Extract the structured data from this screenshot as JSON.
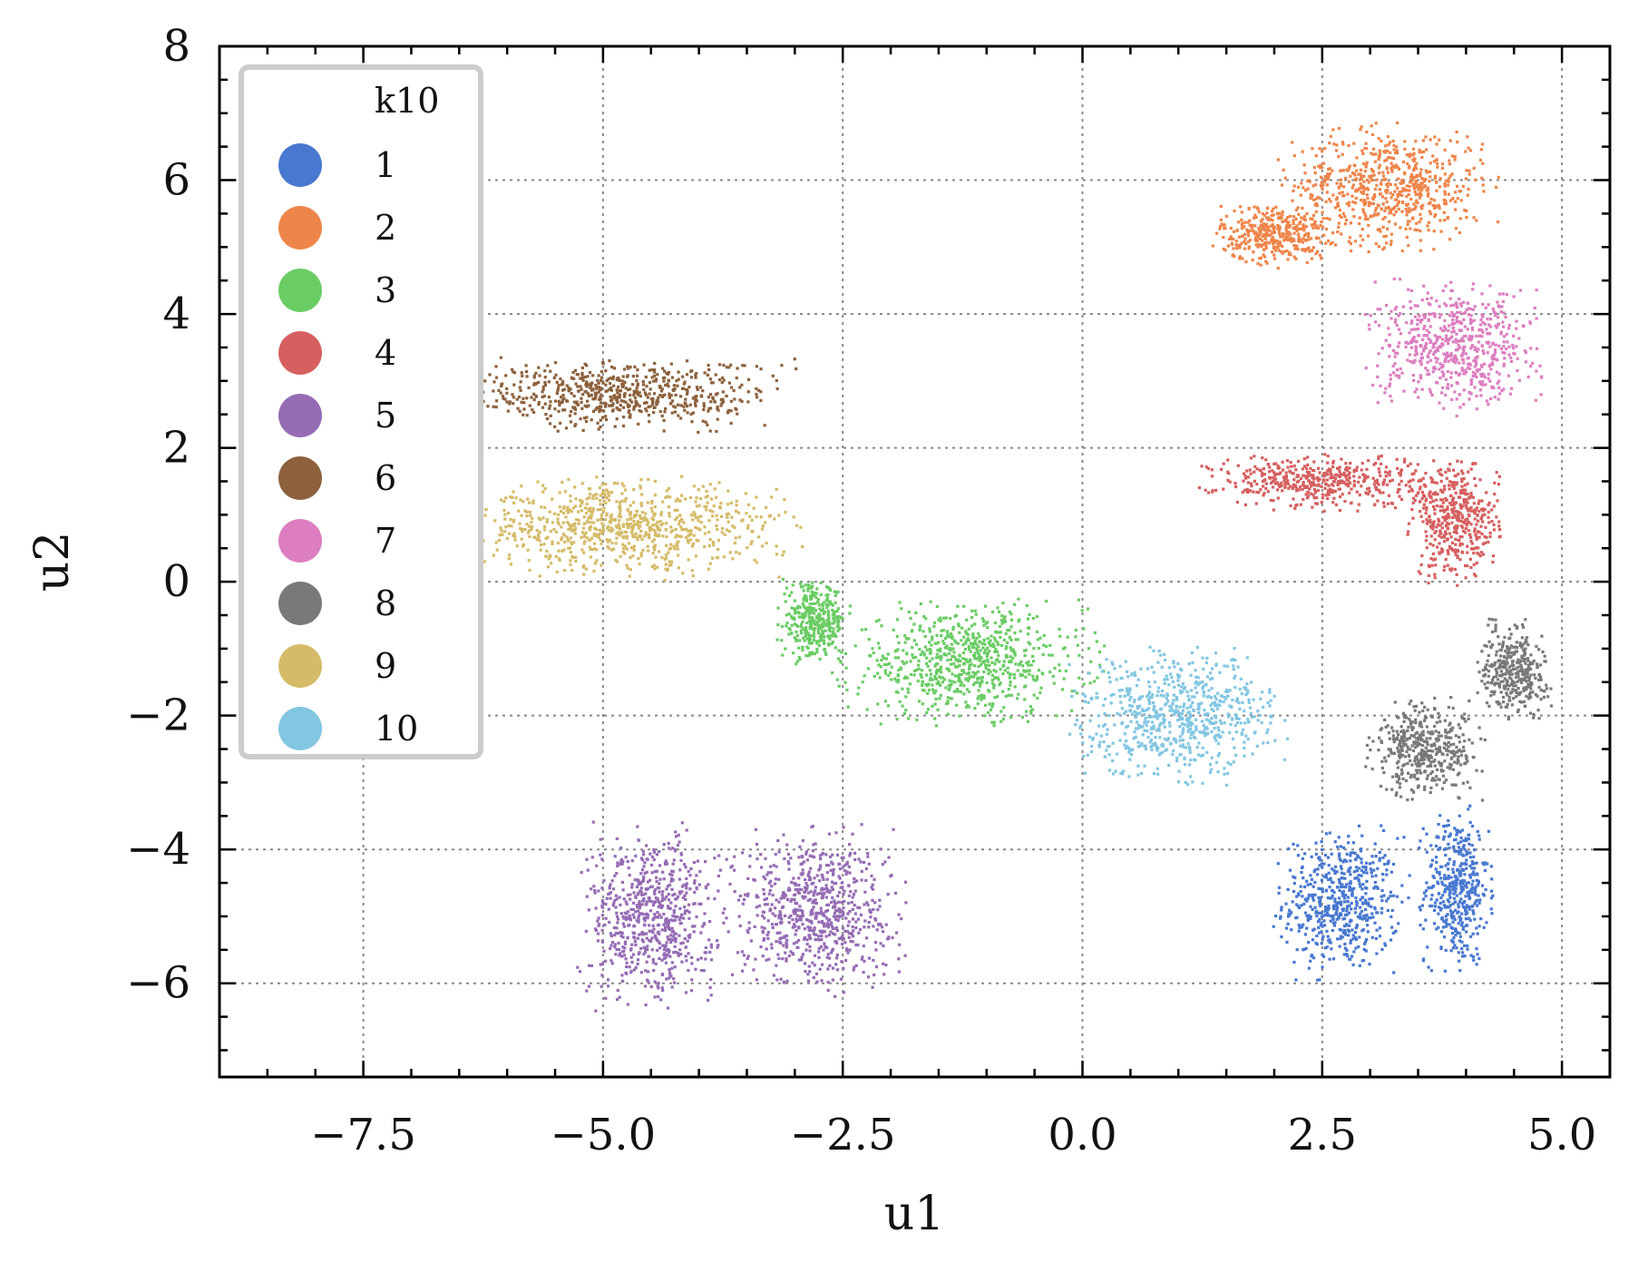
{
  "chart_data": {
    "type": "scatter",
    "xlabel": "u1",
    "ylabel": "u2",
    "xlim": [
      -9.0,
      5.5
    ],
    "ylim": [
      -7.4,
      8.0
    ],
    "xticks": [
      -7.5,
      -5.0,
      -2.5,
      0.0,
      2.5,
      5.0
    ],
    "xtick_labels": [
      "−7.5",
      "−5.0",
      "−2.5",
      "0.0",
      "2.5",
      "5.0"
    ],
    "yticks": [
      8,
      6,
      4,
      2,
      0,
      -2,
      -4,
      -6
    ],
    "ytick_labels": [
      "8",
      "6",
      "4",
      "2",
      "0",
      "−2",
      "−4",
      "−6"
    ],
    "grid": true,
    "legend": {
      "title": "k10",
      "placement": "top-left"
    },
    "clusters": [
      {
        "name": "1",
        "color": "#4878d0",
        "regions": [
          {
            "center": [
              2.7,
              -4.8
            ],
            "spread": [
              0.55,
              0.9
            ]
          },
          {
            "center": [
              3.9,
              -4.6
            ],
            "spread": [
              0.3,
              1.0
            ]
          }
        ]
      },
      {
        "name": "2",
        "color": "#ee854a",
        "regions": [
          {
            "center": [
              3.2,
              5.9
            ],
            "spread": [
              0.9,
              0.75
            ]
          },
          {
            "center": [
              2.0,
              5.2
            ],
            "spread": [
              0.5,
              0.4
            ]
          }
        ]
      },
      {
        "name": "3",
        "color": "#6acc64",
        "regions": [
          {
            "center": [
              -1.2,
              -1.2
            ],
            "spread": [
              1.1,
              0.75
            ]
          },
          {
            "center": [
              -2.8,
              -0.6
            ],
            "spread": [
              0.3,
              0.5
            ]
          }
        ]
      },
      {
        "name": "4",
        "color": "#d65f5f",
        "regions": [
          {
            "center": [
              2.5,
              1.5
            ],
            "spread": [
              1.0,
              0.35
            ]
          },
          {
            "center": [
              3.9,
              0.9
            ],
            "spread": [
              0.4,
              0.75
            ]
          }
        ]
      },
      {
        "name": "5",
        "color": "#956cb4",
        "regions": [
          {
            "center": [
              -4.5,
              -5.0
            ],
            "spread": [
              0.6,
              1.1
            ]
          },
          {
            "center": [
              -2.8,
              -4.9
            ],
            "spread": [
              0.75,
              1.0
            ]
          }
        ]
      },
      {
        "name": "6",
        "color": "#8c613c",
        "regions": [
          {
            "center": [
              -4.8,
              2.8
            ],
            "spread": [
              1.4,
              0.45
            ]
          }
        ]
      },
      {
        "name": "7",
        "color": "#dc7ec0",
        "regions": [
          {
            "center": [
              3.9,
              3.5
            ],
            "spread": [
              0.75,
              0.8
            ]
          }
        ]
      },
      {
        "name": "8",
        "color": "#797979",
        "regions": [
          {
            "center": [
              4.5,
              -1.3
            ],
            "spread": [
              0.3,
              0.6
            ]
          },
          {
            "center": [
              3.6,
              -2.5
            ],
            "spread": [
              0.5,
              0.6
            ]
          }
        ]
      },
      {
        "name": "9",
        "color": "#d5bb67",
        "regions": [
          {
            "center": [
              -4.8,
              0.8
            ],
            "spread": [
              1.5,
              0.6
            ]
          }
        ]
      },
      {
        "name": "10",
        "color": "#82c6e2",
        "regions": [
          {
            "center": [
              1.0,
              -2.0
            ],
            "spread": [
              0.9,
              0.8
            ]
          }
        ]
      }
    ]
  }
}
